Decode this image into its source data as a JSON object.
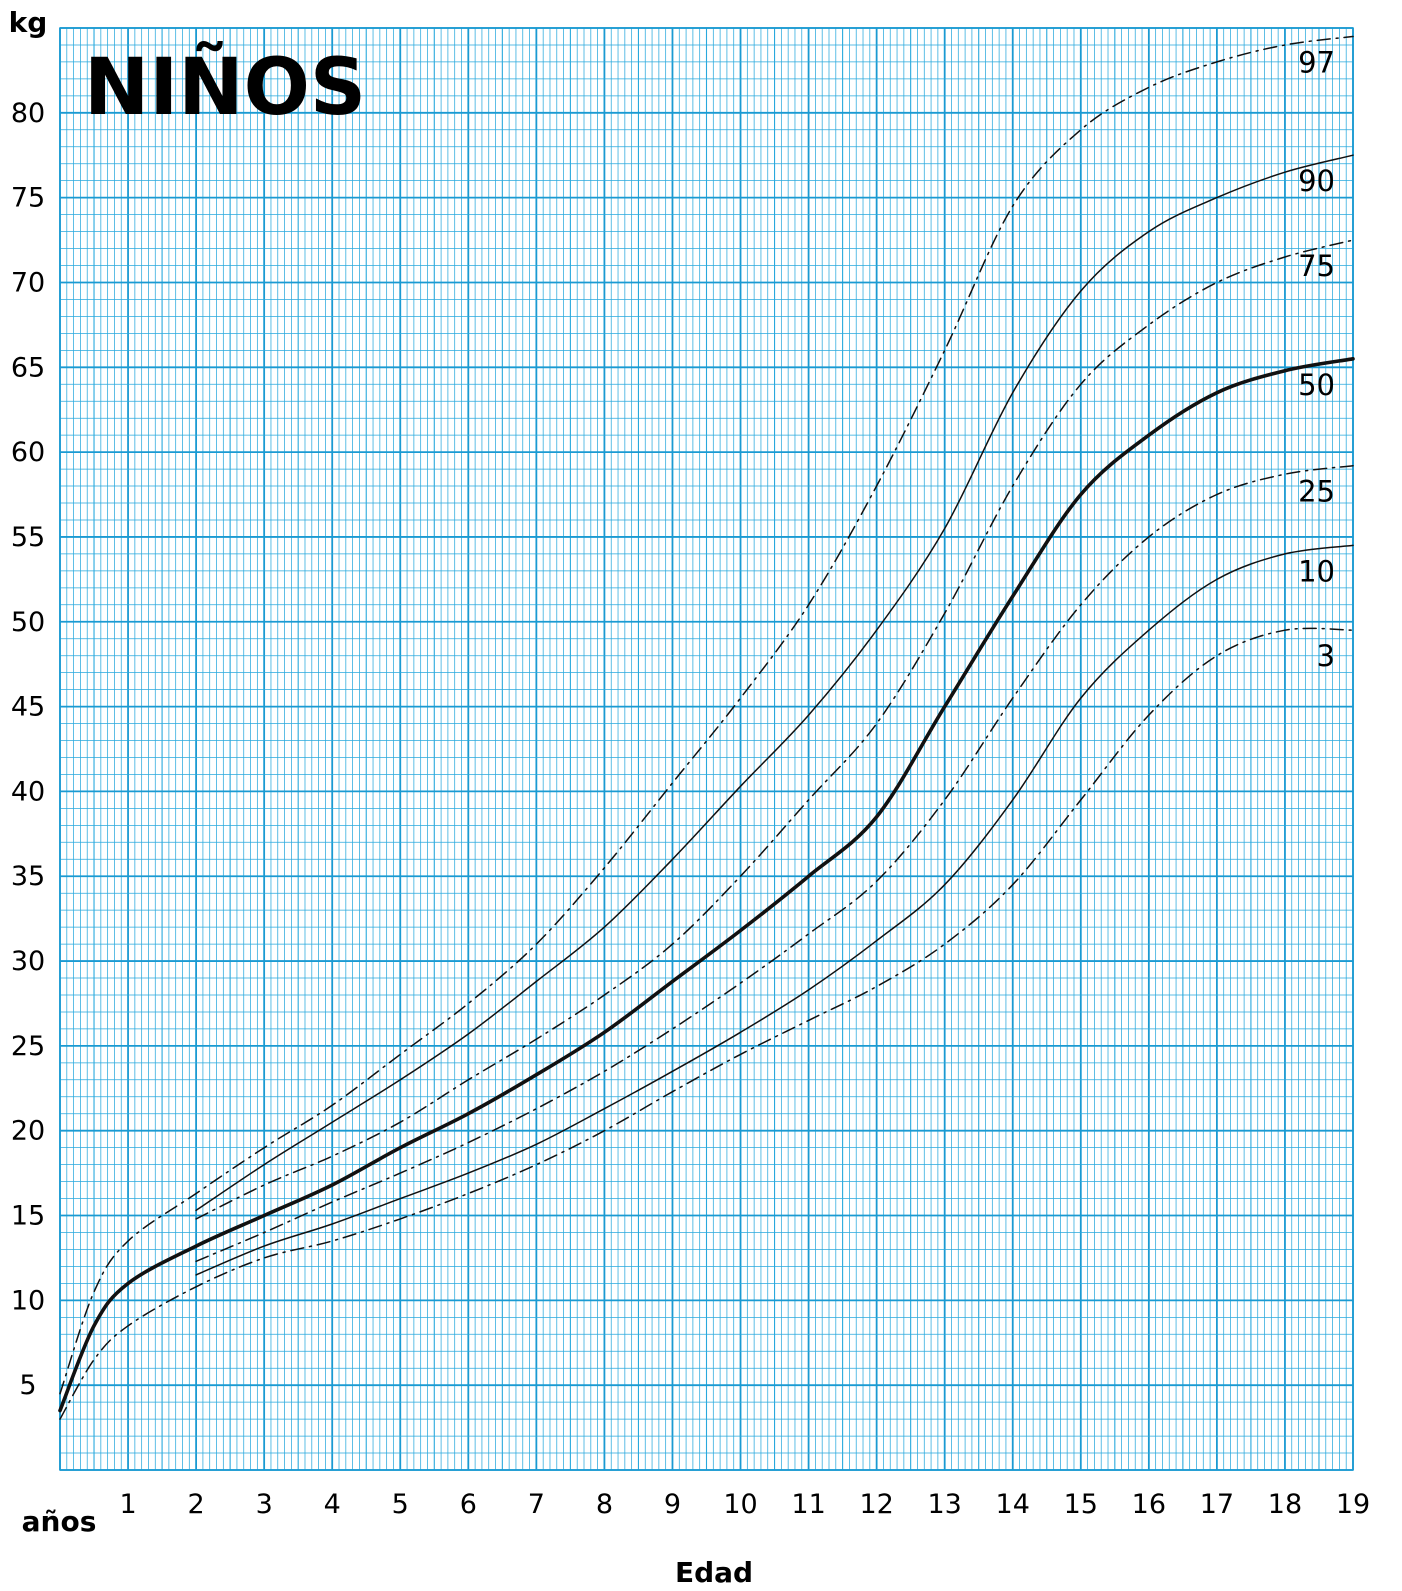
{
  "chart_data": {
    "type": "line",
    "title": "NIÑOS",
    "ylabel": "kg",
    "xlabel": "Edad",
    "x_unit_label": "años",
    "xlim": [
      0,
      19
    ],
    "ylim": [
      0,
      85
    ],
    "x_ticks": [
      1,
      2,
      3,
      4,
      5,
      6,
      7,
      8,
      9,
      10,
      11,
      12,
      13,
      14,
      15,
      16,
      17,
      18,
      19
    ],
    "y_ticks": [
      5,
      10,
      15,
      20,
      25,
      30,
      35,
      40,
      45,
      50,
      55,
      60,
      65,
      70,
      75,
      80
    ],
    "grid": true,
    "colors": {
      "grid": "#29a9dd",
      "grid_major": "#1a9ad2",
      "curve": "#111111",
      "background": "#ffffff"
    },
    "series": [
      {
        "name": "97",
        "style": "dashed",
        "weight": "normal",
        "x": [
          0,
          0.5,
          1,
          2,
          3,
          4,
          5,
          6,
          7,
          8,
          9,
          10,
          11,
          12,
          13,
          14,
          15,
          16,
          17,
          18,
          19
        ],
        "y": [
          4.5,
          10.5,
          13.5,
          16.3,
          19.0,
          21.5,
          24.5,
          27.5,
          31.0,
          35.5,
          40.5,
          45.5,
          51.0,
          58.0,
          66.0,
          74.5,
          79.0,
          81.5,
          83.0,
          84.0,
          84.5
        ]
      },
      {
        "name": "90",
        "style": "solid",
        "weight": "normal",
        "x": [
          2,
          3,
          4,
          5,
          6,
          7,
          8,
          9,
          10,
          11,
          12,
          13,
          14,
          15,
          16,
          17,
          18,
          19
        ],
        "y": [
          15.3,
          18.0,
          20.5,
          23.0,
          25.7,
          28.8,
          32.0,
          36.0,
          40.3,
          44.5,
          49.5,
          55.5,
          63.5,
          69.5,
          73.0,
          75.0,
          76.5,
          77.5
        ]
      },
      {
        "name": "75",
        "style": "dashed",
        "weight": "normal",
        "x": [
          2,
          3,
          4,
          5,
          6,
          7,
          8,
          9,
          10,
          11,
          12,
          13,
          14,
          15,
          16,
          17,
          18,
          19
        ],
        "y": [
          14.8,
          16.8,
          18.5,
          20.5,
          23.0,
          25.4,
          28.0,
          31.0,
          35.0,
          39.5,
          44.0,
          50.5,
          58.0,
          64.0,
          67.5,
          70.0,
          71.5,
          72.5
        ]
      },
      {
        "name": "50",
        "style": "solid",
        "weight": "bold",
        "x": [
          0,
          0.5,
          1,
          2,
          3,
          4,
          5,
          6,
          7,
          8,
          9,
          10,
          11,
          12,
          13,
          14,
          15,
          16,
          17,
          18,
          19
        ],
        "y": [
          3.5,
          8.5,
          11.0,
          13.2,
          15.0,
          16.8,
          19.0,
          21.0,
          23.3,
          25.8,
          28.8,
          31.8,
          35.0,
          38.5,
          45.0,
          51.5,
          57.5,
          61.0,
          63.5,
          64.8,
          65.5
        ]
      },
      {
        "name": "25",
        "style": "dashed",
        "weight": "normal",
        "x": [
          2,
          3,
          4,
          5,
          6,
          7,
          8,
          9,
          10,
          11,
          12,
          13,
          14,
          15,
          16,
          17,
          18,
          19
        ],
        "y": [
          12.3,
          14.0,
          15.8,
          17.5,
          19.3,
          21.3,
          23.5,
          26.0,
          28.7,
          31.6,
          34.7,
          39.5,
          45.5,
          51.0,
          55.0,
          57.5,
          58.7,
          59.2
        ]
      },
      {
        "name": "10",
        "style": "solid",
        "weight": "normal",
        "x": [
          2,
          3,
          4,
          5,
          6,
          7,
          8,
          9,
          10,
          11,
          12,
          13,
          14,
          15,
          16,
          17,
          18,
          19
        ],
        "y": [
          11.5,
          13.2,
          14.5,
          16.0,
          17.5,
          19.2,
          21.3,
          23.5,
          25.8,
          28.3,
          31.2,
          34.5,
          39.5,
          45.5,
          49.5,
          52.5,
          54.0,
          54.5
        ]
      },
      {
        "name": "3",
        "style": "dashed",
        "weight": "normal",
        "x": [
          0,
          0.5,
          1,
          2,
          3,
          4,
          5,
          6,
          7,
          8,
          9,
          10,
          11,
          12,
          13,
          14,
          15,
          16,
          17,
          18,
          19
        ],
        "y": [
          3.0,
          6.5,
          8.5,
          10.8,
          12.5,
          13.5,
          14.8,
          16.3,
          18.0,
          20.0,
          22.3,
          24.5,
          26.5,
          28.5,
          31.0,
          34.5,
          39.5,
          44.5,
          48.0,
          49.5,
          49.5
        ]
      }
    ]
  }
}
